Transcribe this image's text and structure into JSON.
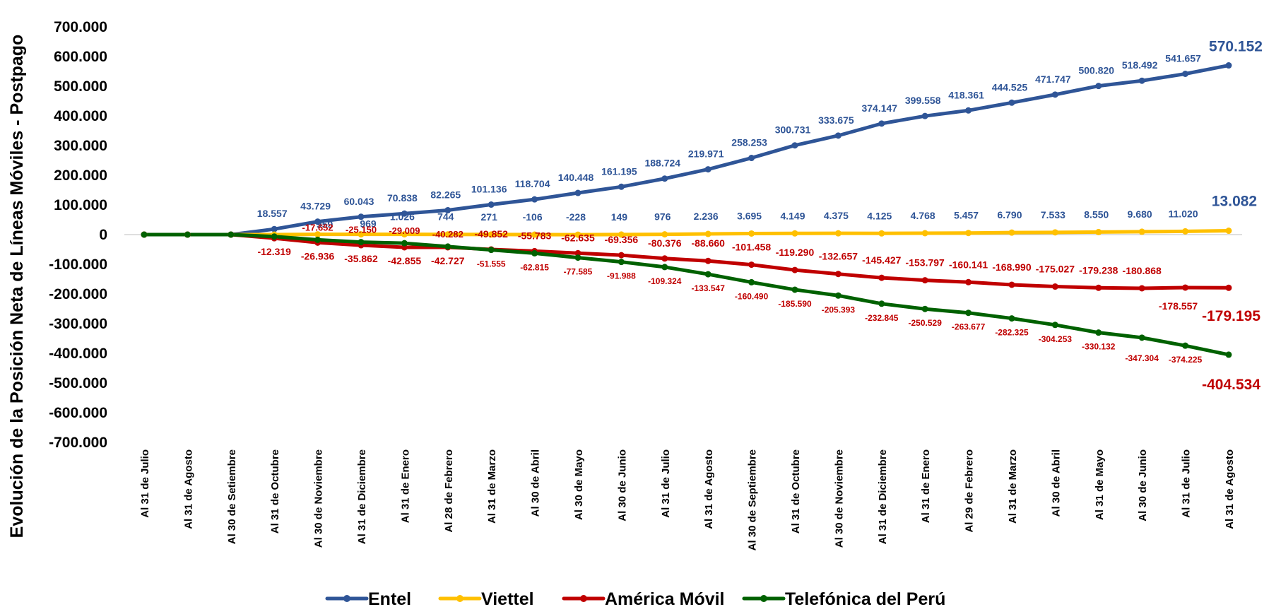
{
  "chart_data": {
    "type": "line",
    "title": "",
    "ylabel": "Evolución de la Posición Neta de Líneas Móviles - Postpago",
    "xlabel": "",
    "ylim": [
      -700000,
      700000
    ],
    "yticks": [
      700000,
      600000,
      500000,
      400000,
      300000,
      200000,
      100000,
      0,
      -100000,
      -200000,
      -300000,
      -400000,
      -500000,
      -600000,
      -700000
    ],
    "ytick_labels": [
      "700.000",
      "600.000",
      "500.000",
      "400.000",
      "300.000",
      "200.000",
      "100.000",
      "0",
      "-100.000",
      "-200.000",
      "-300.000",
      "-400.000",
      "-500.000",
      "-600.000",
      "-700.000"
    ],
    "categories": [
      "Al 31 de Julio",
      "Al 31 de Agosto",
      "Al 30 de Setiembre",
      "Al 31 de Octubre",
      "Al 30 de Noviembre",
      "Al 31 de Diciembre",
      "Al 31 de Enero",
      "Al 28 de Febrero",
      "Al 31 de Marzo",
      "Al 30 de Abril",
      "Al 30 de Mayo",
      "Al 30 de Junio",
      "Al 31 de Julio",
      "Al 31 de Agosto",
      "Al 30 de Septiembre",
      "Al 31 de Octubre",
      "Al 30 de Noviembre",
      "Al 31 de Diciembre",
      "Al 31 de Enero",
      "Al 29 de Febrero",
      "Al 31 de Marzo",
      "Al 30 de Abril",
      "Al 31 de Mayo",
      "Al 30 de Junio",
      "Al 31 de Julio",
      "Al 31 de Agosto"
    ],
    "legend_position": "bottom",
    "grid": false,
    "series": [
      {
        "name": "Entel",
        "color": "#2F5597",
        "values": [
          0,
          0,
          0,
          18557,
          43729,
          60043,
          70838,
          82265,
          101136,
          118704,
          140448,
          161195,
          188724,
          219971,
          258253,
          300731,
          333675,
          374147,
          399558,
          418361,
          444525,
          471747,
          500820,
          518492,
          541657,
          570152
        ],
        "labels": [
          "",
          "",
          "",
          "18.557",
          "43.729",
          "60.043",
          "70.838",
          "82.265",
          "101.136",
          "118.704",
          "140.448",
          "161.195",
          "188.724",
          "219.971",
          "258.253",
          "300.731",
          "333.675",
          "374.147",
          "399.558",
          "418.361",
          "444.525",
          "471.747",
          "500.820",
          "518.492",
          "541.657",
          "570.152"
        ]
      },
      {
        "name": "Viettel",
        "color": "#FFC000",
        "values": [
          0,
          0,
          0,
          0,
          959,
          969,
          1026,
          744,
          271,
          -106,
          -228,
          149,
          976,
          2236,
          3695,
          4149,
          4375,
          4125,
          4768,
          5457,
          6790,
          7533,
          8550,
          9680,
          11020,
          13082
        ],
        "labels": [
          "",
          "",
          "",
          "",
          "959",
          "969",
          "1.026",
          "744",
          "271",
          "-106",
          "-228",
          "149",
          "976",
          "2.236",
          "3.695",
          "4.149",
          "4.375",
          "4.125",
          "4.768",
          "5.457",
          "6.790",
          "7.533",
          "8.550",
          "9.680",
          "11.020",
          "13.082"
        ]
      },
      {
        "name": "América Móvil",
        "color": "#C00000",
        "values": [
          0,
          0,
          0,
          -12319,
          -26936,
          -35862,
          -42855,
          -42727,
          -49852,
          -55783,
          -62635,
          -69356,
          -80376,
          -88660,
          -101458,
          -119290,
          -132657,
          -145427,
          -153797,
          -160141,
          -168990,
          -175027,
          -179238,
          -180868,
          -178557,
          -179195
        ],
        "labels": [
          "",
          "",
          "",
          "-12.319",
          "-26.936",
          "-35.862",
          "-42.855",
          "-42.727",
          "-49.852",
          "-55.783",
          "-62.635",
          "-69.356",
          "-80.376",
          "-88.660",
          "-101.458",
          "-119.290",
          "-132.657",
          "-145.427",
          "-153.797",
          "-160.141",
          "-168.990",
          "-175.027",
          "-179.238",
          "-180.868",
          "-178.557",
          "-179.195"
        ]
      },
      {
        "name": "Telefónica del Perú",
        "color": "#006100",
        "values": [
          0,
          0,
          0,
          -6500,
          -17652,
          -25150,
          -29009,
          -40282,
          -51555,
          -62815,
          -77585,
          -91988,
          -109324,
          -133547,
          -160490,
          -185590,
          -205393,
          -232845,
          -250529,
          -263677,
          -282325,
          -304253,
          -330132,
          -347304,
          -374225,
          -404534
        ],
        "labels": [
          "",
          "",
          "",
          "",
          "-17.652",
          "-25.150",
          "-29.009",
          "-40.282",
          "-51.555",
          "-62.815",
          "-77.585",
          "-91.988",
          "-109.324",
          "-133.547",
          "-160.490",
          "-185.590",
          "-205.393",
          "-232.845",
          "-250.529",
          "-263.677",
          "-282.325",
          "-304.253",
          "-330.132",
          "-347.304",
          "-374.225",
          "-404.534"
        ]
      }
    ]
  }
}
